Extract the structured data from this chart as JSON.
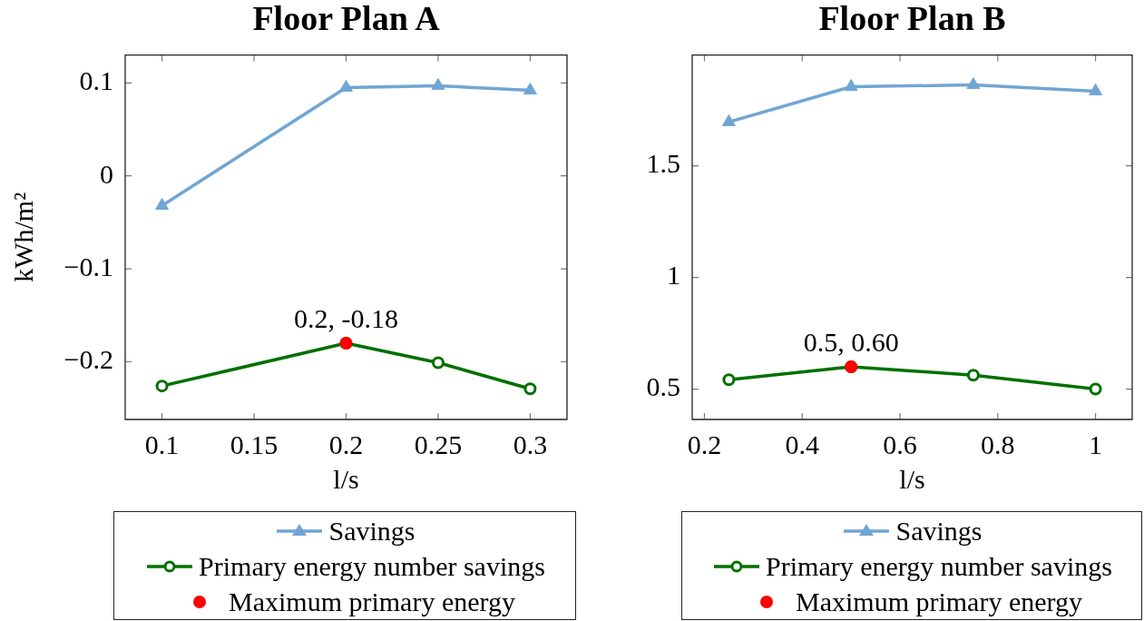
{
  "chart_data": [
    {
      "type": "line",
      "title": "Floor Plan A",
      "xlabel": "l/s",
      "ylabel": "kWh/m²",
      "xlim": [
        0.08,
        0.32
      ],
      "xticks": [
        0.1,
        0.15,
        0.2,
        0.25,
        0.3
      ],
      "ylim": [
        -0.262,
        0.13
      ],
      "yticks": [
        {
          "value": -0.2,
          "label": "−0.2"
        },
        {
          "value": -0.1,
          "label": "−0.1"
        },
        0,
        0.1
      ],
      "grid": false,
      "legend": "bottom",
      "series": [
        {
          "name": "Savings",
          "color": "#70a6d4",
          "marker": "triangle",
          "x": [
            0.1,
            0.2,
            0.25,
            0.3
          ],
          "values": [
            -0.032,
            0.095,
            0.097,
            0.092
          ]
        },
        {
          "name": "Primary energy number savings",
          "color": "#007000",
          "marker": "circle",
          "x": [
            0.1,
            0.2,
            0.25,
            0.3
          ],
          "values": [
            -0.226,
            -0.18,
            -0.201,
            -0.229
          ]
        },
        {
          "name": "Maximum primary energy",
          "type": "scatter",
          "color": "#ff0000",
          "marker": "circle",
          "x": [
            0.2
          ],
          "values": [
            -0.18
          ]
        }
      ],
      "annotations": [
        {
          "text": "0.2, -0.18",
          "x": 0.2,
          "y": -0.18
        }
      ]
    },
    {
      "type": "line",
      "title": "Floor Plan B",
      "xlabel": "l/s",
      "xlim": [
        0.175,
        1.075
      ],
      "xticks": [
        0.2,
        0.4,
        0.6,
        0.8,
        1
      ],
      "ylim": [
        0.364,
        1.996
      ],
      "yticks": [
        0.5,
        1,
        1.5
      ],
      "grid": false,
      "legend": "bottom",
      "series": [
        {
          "name": "Savings",
          "color": "#70a6d4",
          "marker": "triangle",
          "x": [
            0.25,
            0.5,
            0.75,
            1
          ],
          "values": [
            1.696,
            1.854,
            1.862,
            1.834
          ]
        },
        {
          "name": "Primary energy number savings",
          "color": "#007000",
          "marker": "circle",
          "x": [
            0.25,
            0.5,
            0.75,
            1
          ],
          "values": [
            0.542,
            0.6,
            0.562,
            0.5
          ]
        },
        {
          "name": "Maximum primary energy",
          "type": "scatter",
          "color": "#ff0000",
          "marker": "circle",
          "x": [
            0.5
          ],
          "values": [
            0.6
          ]
        }
      ],
      "annotations": [
        {
          "text": "0.5, 0.60",
          "x": 0.5,
          "y": 0.6
        }
      ]
    }
  ]
}
